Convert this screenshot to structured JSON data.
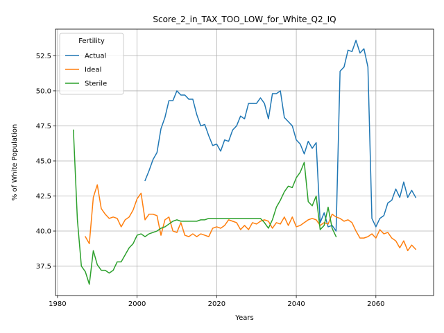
{
  "chart_data": {
    "type": "line",
    "title": "Score_2_in_TAX_TOO_LOW_for_White_Q2_IQ",
    "xlabel": "Years",
    "ylabel": "% of White Population",
    "xlim": [
      1979.5,
      2074.5
    ],
    "ylim": [
      35.4,
      54.4
    ],
    "xticks": [
      1980,
      2000,
      2020,
      2040,
      2060
    ],
    "yticks": [
      37.5,
      40.0,
      42.5,
      45.0,
      47.5,
      50.0,
      52.5
    ],
    "ytick_labels": [
      "37.5",
      "40.0",
      "42.5",
      "45.0",
      "47.5",
      "50.0",
      "52.5"
    ],
    "grid": true,
    "legend": {
      "title": "Fertility",
      "position": "top-left"
    },
    "series": [
      {
        "name": "Actual",
        "color": "#1f77b4",
        "x": [
          2002,
          2003,
          2004,
          2005,
          2006,
          2007,
          2008,
          2009,
          2010,
          2011,
          2012,
          2013,
          2014,
          2015,
          2016,
          2017,
          2018,
          2019,
          2020,
          2021,
          2022,
          2023,
          2024,
          2025,
          2026,
          2027,
          2028,
          2029,
          2030,
          2031,
          2032,
          2033,
          2034,
          2035,
          2036,
          2037,
          2038,
          2039,
          2040,
          2041,
          2042,
          2043,
          2044,
          2045,
          2046,
          2047,
          2048,
          2049,
          2050,
          2051,
          2052,
          2053,
          2054,
          2055,
          2056,
          2057,
          2058,
          2059,
          2060,
          2061,
          2062,
          2063,
          2064,
          2065,
          2066,
          2067,
          2068,
          2069,
          2070
        ],
        "y": [
          43.6,
          44.3,
          45.1,
          45.6,
          47.3,
          48.1,
          49.3,
          49.3,
          50.0,
          49.7,
          49.7,
          49.4,
          49.4,
          48.3,
          47.5,
          47.6,
          46.8,
          46.1,
          46.2,
          45.7,
          46.5,
          46.4,
          47.2,
          47.5,
          48.2,
          48.0,
          49.1,
          49.1,
          49.1,
          49.5,
          49.1,
          48.0,
          49.8,
          49.8,
          50.0,
          48.1,
          47.8,
          47.5,
          46.5,
          46.2,
          45.5,
          46.4,
          45.9,
          46.3,
          40.6,
          41.3,
          40.3,
          40.4,
          40.0,
          51.4,
          51.7,
          52.9,
          52.8,
          53.6,
          52.7,
          53.0,
          51.7,
          40.9,
          40.3,
          40.9,
          41.1,
          42.0,
          42.2,
          43.0,
          42.4,
          43.5,
          42.4,
          42.9,
          42.4
        ]
      },
      {
        "name": "Ideal",
        "color": "#ff7f0e",
        "x": [
          1987,
          1988,
          1989,
          1990,
          1991,
          1992,
          1993,
          1994,
          1995,
          1996,
          1997,
          1998,
          1999,
          2000,
          2001,
          2002,
          2003,
          2004,
          2005,
          2006,
          2007,
          2008,
          2009,
          2010,
          2011,
          2012,
          2013,
          2014,
          2015,
          2016,
          2017,
          2018,
          2019,
          2020,
          2021,
          2022,
          2023,
          2024,
          2025,
          2026,
          2027,
          2028,
          2029,
          2030,
          2031,
          2032,
          2033,
          2034,
          2035,
          2036,
          2037,
          2038,
          2039,
          2040,
          2041,
          2042,
          2043,
          2044,
          2045,
          2046,
          2047,
          2048,
          2049,
          2050,
          2051,
          2052,
          2053,
          2054,
          2055,
          2056,
          2057,
          2058,
          2059,
          2060,
          2061,
          2062,
          2063,
          2064,
          2065,
          2066,
          2067,
          2068,
          2069,
          2070
        ],
        "y": [
          39.6,
          39.1,
          42.4,
          43.3,
          41.6,
          41.2,
          40.9,
          41.0,
          40.9,
          40.3,
          40.8,
          41.0,
          41.5,
          42.3,
          42.7,
          40.8,
          41.2,
          41.2,
          41.1,
          39.7,
          40.8,
          41.0,
          40.0,
          39.9,
          40.6,
          39.7,
          39.6,
          39.8,
          39.6,
          39.8,
          39.7,
          39.6,
          40.2,
          40.3,
          40.2,
          40.4,
          40.8,
          40.7,
          40.6,
          40.1,
          40.4,
          40.1,
          40.6,
          40.5,
          40.7,
          40.8,
          40.7,
          40.2,
          40.6,
          40.5,
          41.0,
          40.4,
          41.0,
          40.3,
          40.4,
          40.6,
          40.8,
          40.9,
          40.8,
          40.4,
          40.6,
          40.5,
          41.2,
          41.0,
          40.9,
          40.7,
          40.8,
          40.6,
          40.0,
          39.5,
          39.5,
          39.6,
          39.8,
          39.5,
          40.1,
          39.8,
          39.9,
          39.5,
          39.3,
          38.8,
          39.3,
          38.6,
          39.0,
          38.7
        ]
      },
      {
        "name": "Sterile",
        "color": "#2ca02c",
        "x": [
          1984,
          1985,
          1986,
          1987,
          1988,
          1989,
          1990,
          1991,
          1992,
          1993,
          1994,
          1995,
          1996,
          1997,
          1998,
          1999,
          2000,
          2001,
          2002,
          2003,
          2004,
          2005,
          2006,
          2007,
          2008,
          2009,
          2010,
          2011,
          2012,
          2013,
          2014,
          2015,
          2016,
          2017,
          2018,
          2019,
          2020,
          2021,
          2022,
          2023,
          2024,
          2025,
          2026,
          2027,
          2028,
          2029,
          2030,
          2031,
          2032,
          2033,
          2034,
          2035,
          2036,
          2037,
          2038,
          2039,
          2040,
          2041,
          2042,
          2043,
          2044,
          2045,
          2046,
          2047,
          2048,
          2049,
          2050
        ],
        "y": [
          47.2,
          40.8,
          37.5,
          37.1,
          36.2,
          38.6,
          37.6,
          37.2,
          37.2,
          37.0,
          37.2,
          37.8,
          37.8,
          38.3,
          38.8,
          39.1,
          39.7,
          39.8,
          39.6,
          39.8,
          39.9,
          40.0,
          40.2,
          40.3,
          40.5,
          40.7,
          40.8,
          40.7,
          40.7,
          40.7,
          40.7,
          40.7,
          40.8,
          40.8,
          40.9,
          40.9,
          40.9,
          40.9,
          40.9,
          40.9,
          40.9,
          40.9,
          40.9,
          40.9,
          40.9,
          40.9,
          40.9,
          40.9,
          40.6,
          40.2,
          40.8,
          41.7,
          42.2,
          42.8,
          43.2,
          43.1,
          43.8,
          44.2,
          44.9,
          42.1,
          41.8,
          42.5,
          40.1,
          40.4,
          41.7,
          40.2,
          39.6
        ]
      }
    ]
  }
}
